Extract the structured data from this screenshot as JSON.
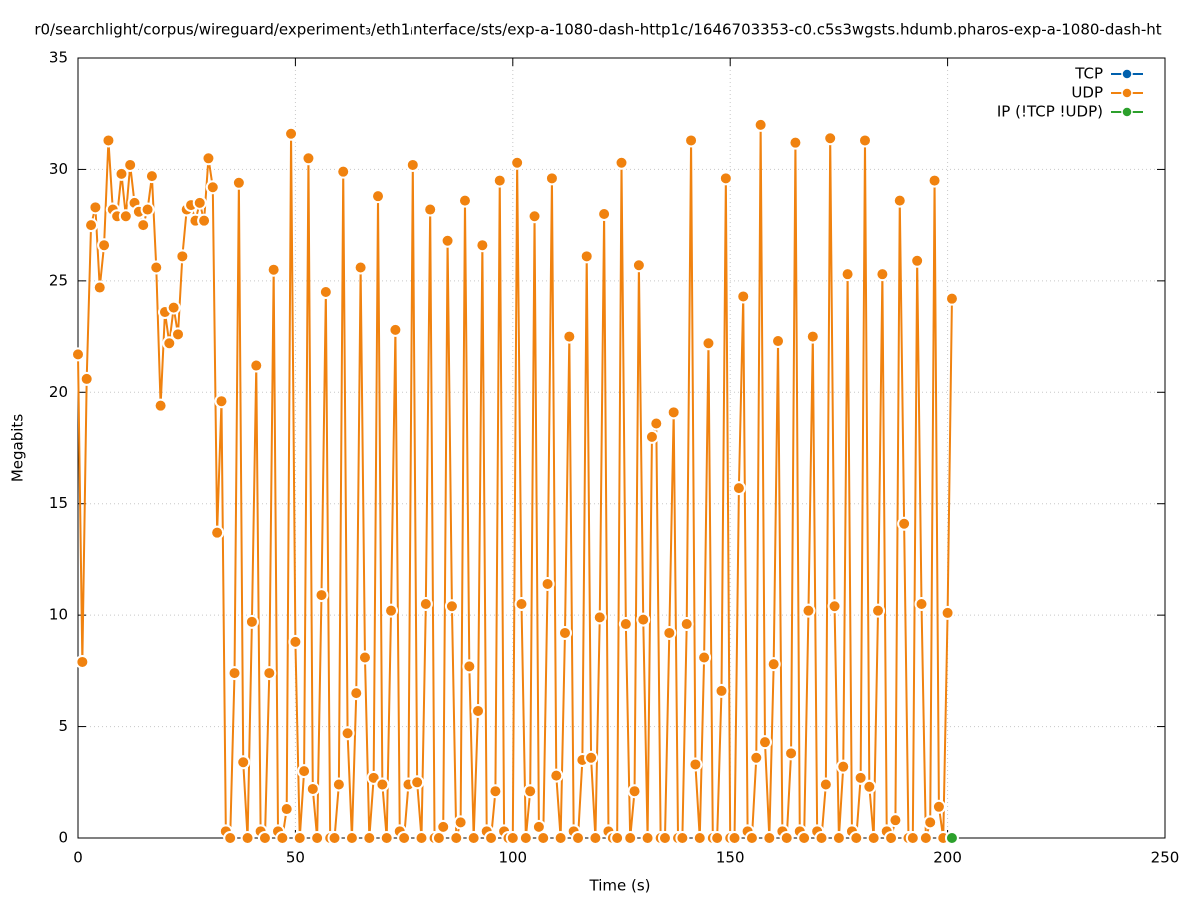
{
  "chart_data": {
    "type": "line",
    "title": "r0/searchlight/corpus/wireguard/experiment₃/eth1ᵢnterface/sts/exp-a-1080-dash-http1c/1646703353-c0.c5s3wgsts.hdumb.pharos-exp-a-1080-dash-ht",
    "xlabel": "Time (s)",
    "ylabel": "Megabits",
    "xlim": [
      0,
      250
    ],
    "xticks": [
      0,
      50,
      100,
      150,
      200,
      250
    ],
    "ylim": [
      0,
      35
    ],
    "yticks": [
      0,
      5,
      10,
      15,
      20,
      25,
      30,
      35
    ],
    "grid": true,
    "legend": "top-right",
    "series": [
      {
        "name": "TCP",
        "color": "#0060ad",
        "x": [],
        "values": []
      },
      {
        "name": "UDP",
        "color": "#f0820f",
        "x": [
          0,
          1,
          2,
          3,
          4,
          5,
          6,
          7,
          8,
          9,
          10,
          11,
          12,
          13,
          14,
          15,
          16,
          17,
          18,
          19,
          20,
          21,
          22,
          23,
          24,
          25,
          26,
          27,
          28,
          29,
          30,
          31,
          32,
          33,
          34,
          35,
          36,
          37,
          38,
          39,
          40,
          41,
          42,
          43,
          44,
          45,
          46,
          47,
          48,
          49,
          50,
          51,
          52,
          53,
          54,
          55,
          56,
          57,
          58,
          59,
          60,
          61,
          62,
          63,
          64,
          65,
          66,
          67,
          68,
          69,
          70,
          71,
          72,
          73,
          74,
          75,
          76,
          77,
          78,
          79,
          80,
          81,
          82,
          83,
          84,
          85,
          86,
          87,
          88,
          89,
          90,
          91,
          92,
          93,
          94,
          95,
          96,
          97,
          98,
          99,
          100,
          101,
          102,
          103,
          104,
          105,
          106,
          107,
          108,
          109,
          110,
          111,
          112,
          113,
          114,
          115,
          116,
          117,
          118,
          119,
          120,
          121,
          122,
          123,
          124,
          125,
          126,
          127,
          128,
          129,
          130,
          131,
          132,
          133,
          134,
          135,
          136,
          137,
          138,
          139,
          140,
          141,
          142,
          143,
          144,
          145,
          146,
          147,
          148,
          149,
          150,
          151,
          152,
          153,
          154,
          155,
          156,
          157,
          158,
          159,
          160,
          161,
          162,
          163,
          164,
          165,
          166,
          167,
          168,
          169,
          170,
          171,
          172,
          173,
          174,
          175,
          176,
          177,
          178,
          179,
          180,
          181,
          182,
          183,
          184,
          185,
          186,
          187,
          188,
          189,
          190,
          191,
          192,
          193,
          194,
          195,
          196,
          197,
          198,
          199,
          200,
          201
        ],
        "values": [
          21.7,
          7.9,
          20.6,
          27.5,
          28.3,
          24.7,
          26.6,
          31.3,
          28.2,
          27.9,
          29.8,
          27.9,
          30.2,
          28.5,
          28.1,
          27.5,
          28.2,
          29.7,
          25.6,
          19.4,
          23.6,
          22.2,
          23.8,
          22.6,
          26.1,
          28.2,
          28.4,
          27.7,
          28.5,
          27.7,
          30.5,
          29.2,
          13.7,
          19.6,
          0.3,
          0,
          7.4,
          29.4,
          3.4,
          0,
          9.7,
          21.2,
          0.3,
          0,
          7.4,
          25.5,
          0.3,
          0,
          1.3,
          31.6,
          8.8,
          0,
          3.0,
          30.5,
          2.2,
          0,
          10.9,
          24.5,
          0,
          0,
          2.4,
          29.9,
          4.7,
          0,
          6.5,
          25.6,
          8.1,
          0,
          2.7,
          28.8,
          2.4,
          0,
          10.2,
          22.8,
          0.3,
          0,
          2.4,
          30.2,
          2.5,
          0,
          10.5,
          28.2,
          0,
          0,
          0.5,
          26.8,
          10.4,
          0,
          0.7,
          28.6,
          7.7,
          0,
          5.7,
          26.6,
          0.3,
          0,
          2.1,
          29.5,
          0.3,
          0,
          0,
          30.3,
          10.5,
          0,
          2.1,
          27.9,
          0.5,
          0,
          11.4,
          29.6,
          2.8,
          0,
          9.2,
          22.5,
          0.3,
          0,
          3.5,
          26.1,
          3.6,
          0,
          9.9,
          28.0,
          0.3,
          0,
          0,
          30.3,
          9.6,
          0,
          2.1,
          25.7,
          9.8,
          0,
          18.0,
          18.6,
          0,
          0,
          9.2,
          19.1,
          0,
          0,
          9.6,
          31.3,
          3.3,
          0,
          8.1,
          22.2,
          0,
          0,
          6.6,
          29.6,
          0,
          0,
          15.7,
          24.3,
          0.3,
          0,
          3.6,
          32.0,
          4.3,
          0,
          7.8,
          22.3,
          0.3,
          0,
          3.8,
          31.2,
          0.3,
          0,
          10.2,
          22.5,
          0.3,
          0,
          2.4,
          31.4,
          10.4,
          0,
          3.2,
          25.3,
          0.3,
          0,
          2.7,
          31.3,
          2.3,
          0,
          10.2,
          25.3,
          0.3,
          0,
          0.8,
          28.6,
          14.1,
          0,
          0,
          25.9,
          10.5,
          0,
          0.7,
          29.5,
          1.4,
          0,
          10.1,
          24.2
        ]
      },
      {
        "name": "IP (!TCP  !UDP)",
        "color": "#2ca02c",
        "x": [
          201
        ],
        "values": [
          0
        ]
      }
    ]
  }
}
